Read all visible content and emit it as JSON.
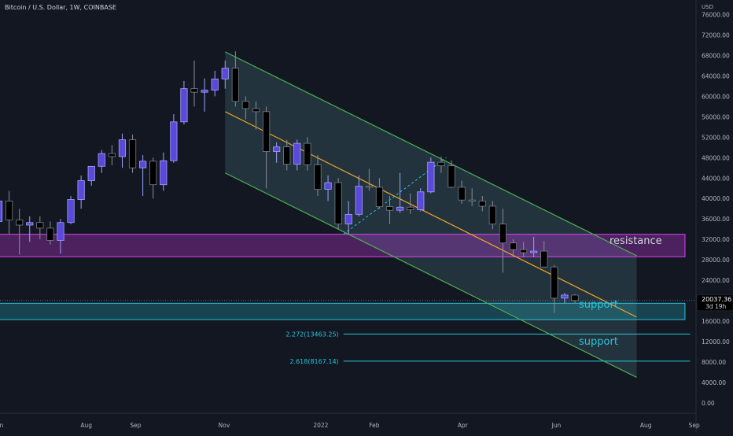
{
  "header": {
    "title": "Bitcoin / U.S. Dollar, 1W, COINBASE",
    "currency": "USD"
  },
  "price_tag": {
    "price": "20037.36",
    "countdown": "3d 19h"
  },
  "labels": {
    "resistance": "resistance",
    "support_1": "support",
    "support_2": "support",
    "fib_1": "2.272(13463.25)",
    "fib_2": "2.618(8167.14)"
  },
  "colors": {
    "background": "#131722",
    "up_candle": "#5b4ad9",
    "down_candle": "#000000",
    "channel_line": "#4caf50",
    "channel_fill": "#2f4a55",
    "mid_line": "#f5a623",
    "resistance_zone": "#e040fb",
    "support_zone": "#26c6da",
    "text": "#b2b5be"
  },
  "chart_data": {
    "type": "candlestick",
    "title": "Bitcoin / U.S. Dollar, 1W, COINBASE",
    "ylabel": "USD",
    "ylim": [
      0,
      78000
    ],
    "y_ticks": [
      "76000.00",
      "72000.00",
      "68000.00",
      "64000.00",
      "60000.00",
      "56000.00",
      "52000.00",
      "48000.00",
      "44000.00",
      "40000.00",
      "36000.00",
      "32000.00",
      "28000.00",
      "24000.00",
      "20000.00",
      "16000.00",
      "12000.00",
      "8000.00",
      "4000.00",
      "0.00"
    ],
    "x_ticks": [
      {
        "label": "Jun",
        "week": 0
      },
      {
        "label": "Aug",
        "week": 8.5
      },
      {
        "label": "Sep",
        "week": 13.3
      },
      {
        "label": "Nov",
        "week": 21.9
      },
      {
        "label": "2022",
        "week": 31.3
      },
      {
        "label": "Feb",
        "week": 36.5
      },
      {
        "label": "Apr",
        "week": 45.1
      },
      {
        "label": "Jun",
        "week": 54.2
      },
      {
        "label": "Aug",
        "week": 62.9
      },
      {
        "label": "Sep",
        "week": 67.6
      }
    ],
    "candles": [
      {
        "w": 0,
        "o": 35500,
        "h": 41500,
        "l": 33500,
        "c": 39500
      },
      {
        "w": 1,
        "o": 39500,
        "h": 41500,
        "l": 33000,
        "c": 35800
      },
      {
        "w": 2,
        "o": 35800,
        "h": 38000,
        "l": 29000,
        "c": 34800
      },
      {
        "w": 3,
        "o": 34800,
        "h": 36500,
        "l": 31500,
        "c": 35300
      },
      {
        "w": 4,
        "o": 35300,
        "h": 36500,
        "l": 32000,
        "c": 34200
      },
      {
        "w": 5,
        "o": 34200,
        "h": 35500,
        "l": 31000,
        "c": 31800
      },
      {
        "w": 6,
        "o": 31800,
        "h": 36000,
        "l": 29200,
        "c": 35300
      },
      {
        "w": 7,
        "o": 35300,
        "h": 40500,
        "l": 35000,
        "c": 39800
      },
      {
        "w": 8,
        "o": 39800,
        "h": 44500,
        "l": 38000,
        "c": 43500
      },
      {
        "w": 9,
        "o": 43500,
        "h": 46000,
        "l": 42500,
        "c": 46300
      },
      {
        "w": 10,
        "o": 46300,
        "h": 49500,
        "l": 45000,
        "c": 48800
      },
      {
        "w": 11,
        "o": 48800,
        "h": 50500,
        "l": 46500,
        "c": 48200
      },
      {
        "w": 12,
        "o": 48200,
        "h": 52700,
        "l": 46000,
        "c": 51500
      },
      {
        "w": 13,
        "o": 51500,
        "h": 52500,
        "l": 45000,
        "c": 46000
      },
      {
        "w": 14,
        "o": 46000,
        "h": 48500,
        "l": 40500,
        "c": 47300
      },
      {
        "w": 15,
        "o": 47300,
        "h": 48000,
        "l": 40000,
        "c": 42700
      },
      {
        "w": 16,
        "o": 42700,
        "h": 49000,
        "l": 41500,
        "c": 47400
      },
      {
        "w": 17,
        "o": 47400,
        "h": 56500,
        "l": 47000,
        "c": 55000
      },
      {
        "w": 18,
        "o": 55000,
        "h": 63000,
        "l": 54500,
        "c": 61500
      },
      {
        "w": 19,
        "o": 61500,
        "h": 67000,
        "l": 58000,
        "c": 60800
      },
      {
        "w": 20,
        "o": 60800,
        "h": 63500,
        "l": 57000,
        "c": 61200
      },
      {
        "w": 21,
        "o": 61200,
        "h": 65000,
        "l": 60000,
        "c": 63400
      },
      {
        "w": 22,
        "o": 63400,
        "h": 67000,
        "l": 61500,
        "c": 65500
      },
      {
        "w": 23,
        "o": 65500,
        "h": 68800,
        "l": 58000,
        "c": 59000
      },
      {
        "w": 24,
        "o": 59000,
        "h": 60000,
        "l": 55500,
        "c": 57600
      },
      {
        "w": 25,
        "o": 57600,
        "h": 59000,
        "l": 53500,
        "c": 57000
      },
      {
        "w": 26,
        "o": 57000,
        "h": 58000,
        "l": 42000,
        "c": 49200
      },
      {
        "w": 27,
        "o": 49200,
        "h": 51000,
        "l": 47000,
        "c": 50100
      },
      {
        "w": 28,
        "o": 50100,
        "h": 51500,
        "l": 45500,
        "c": 46700
      },
      {
        "w": 29,
        "o": 46700,
        "h": 51500,
        "l": 45500,
        "c": 50800
      },
      {
        "w": 30,
        "o": 50800,
        "h": 52000,
        "l": 45500,
        "c": 46600
      },
      {
        "w": 31,
        "o": 46600,
        "h": 48500,
        "l": 40500,
        "c": 41800
      },
      {
        "w": 32,
        "o": 41800,
        "h": 44500,
        "l": 39500,
        "c": 43100
      },
      {
        "w": 33,
        "o": 43100,
        "h": 44000,
        "l": 34000,
        "c": 35000
      },
      {
        "w": 34,
        "o": 35000,
        "h": 39500,
        "l": 33000,
        "c": 36900
      },
      {
        "w": 35,
        "o": 36900,
        "h": 44500,
        "l": 36500,
        "c": 42400
      },
      {
        "w": 36,
        "o": 42400,
        "h": 45800,
        "l": 41500,
        "c": 42200
      },
      {
        "w": 37,
        "o": 42200,
        "h": 44000,
        "l": 38000,
        "c": 38400
      },
      {
        "w": 38,
        "o": 38400,
        "h": 40500,
        "l": 35000,
        "c": 37700
      },
      {
        "w": 39,
        "o": 37700,
        "h": 45000,
        "l": 37200,
        "c": 38300
      },
      {
        "w": 40,
        "o": 38300,
        "h": 41000,
        "l": 37000,
        "c": 37800
      },
      {
        "w": 41,
        "o": 37800,
        "h": 42000,
        "l": 37500,
        "c": 41300
      },
      {
        "w": 42,
        "o": 41300,
        "h": 48000,
        "l": 41000,
        "c": 47100
      },
      {
        "w": 43,
        "o": 47100,
        "h": 48200,
        "l": 45000,
        "c": 46400
      },
      {
        "w": 44,
        "o": 46400,
        "h": 47500,
        "l": 42000,
        "c": 42200
      },
      {
        "w": 45,
        "o": 42200,
        "h": 43500,
        "l": 39000,
        "c": 39700
      },
      {
        "w": 46,
        "o": 39700,
        "h": 42000,
        "l": 38500,
        "c": 39500
      },
      {
        "w": 47,
        "o": 39500,
        "h": 40500,
        "l": 37500,
        "c": 38500
      },
      {
        "w": 48,
        "o": 38500,
        "h": 39500,
        "l": 34000,
        "c": 35000
      },
      {
        "w": 49,
        "o": 35000,
        "h": 38000,
        "l": 25500,
        "c": 31300
      },
      {
        "w": 50,
        "o": 31300,
        "h": 32000,
        "l": 28500,
        "c": 30000
      },
      {
        "w": 51,
        "o": 30000,
        "h": 31500,
        "l": 28500,
        "c": 29400
      },
      {
        "w": 52,
        "o": 29400,
        "h": 32500,
        "l": 28500,
        "c": 29700
      },
      {
        "w": 53,
        "o": 29700,
        "h": 31700,
        "l": 26500,
        "c": 26600
      },
      {
        "w": 54,
        "o": 26600,
        "h": 27000,
        "l": 17600,
        "c": 20500
      },
      {
        "w": 55,
        "o": 20500,
        "h": 21500,
        "l": 19500,
        "c": 21100
      },
      {
        "w": 56,
        "o": 21100,
        "h": 21300,
        "l": 19500,
        "c": 20037
      }
    ],
    "overlays": {
      "channel_upper": {
        "from": {
          "week": 22,
          "price": 68700
        },
        "to": {
          "week": 62,
          "price": 28800
        }
      },
      "channel_lower": {
        "from": {
          "week": 22,
          "price": 45000
        },
        "to": {
          "week": 62,
          "price": 5000
        }
      },
      "channel_mid": {
        "from": {
          "week": 22,
          "price": 57000
        },
        "to": {
          "week": 62,
          "price": 16800
        }
      },
      "resistance_zone": {
        "from_week": 0,
        "to_week": 66.7,
        "top": 33000,
        "bottom": 28600
      },
      "support_zone": {
        "from_week": 0,
        "to_week": 66.7,
        "top": 19500,
        "bottom": 16300
      },
      "fib_levels": [
        {
          "ratio": 2.272,
          "price": 13463.25
        },
        {
          "ratio": 2.618,
          "price": 8167.14
        }
      ],
      "fib_start_week": 33.5,
      "fib_end_week": 67.2,
      "dashed_leg": {
        "from": {
          "week": 33.5,
          "price": 33000
        },
        "to": {
          "week": 43.5,
          "price": 48000
        }
      },
      "last_price_line": 20037.36
    }
  }
}
